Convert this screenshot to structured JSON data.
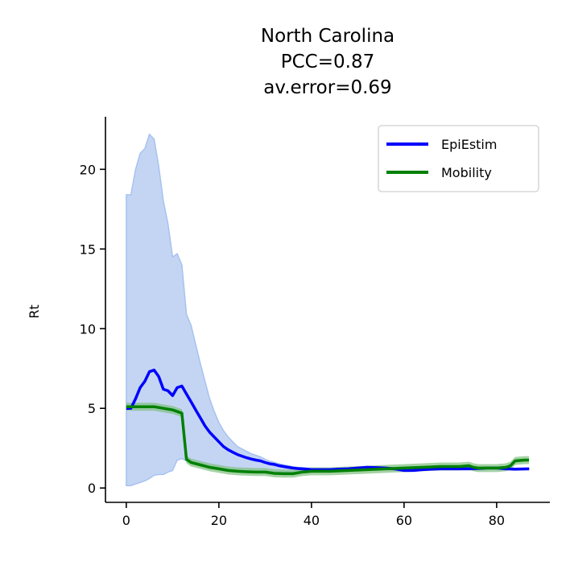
{
  "chart_data": {
    "type": "line",
    "title_lines": [
      "North Carolina",
      "PCC=0.87",
      "av.error=0.69"
    ],
    "xlabel": "",
    "ylabel": "Rt",
    "xlim": [
      -4.5,
      91.5
    ],
    "ylim": [
      -0.9,
      23.3
    ],
    "xticks": [
      0,
      20,
      40,
      60,
      80
    ],
    "yticks": [
      0,
      5,
      10,
      15,
      20
    ],
    "grid": false,
    "legend_position": "top-right",
    "colors": {
      "epiestim": "#0000ff",
      "mobility": "#008000",
      "epiestim_band_fill": "#c4d5f4",
      "epiestim_band_edge": "#a7c2f0",
      "mobility_band_fill": "#7fbf7f"
    },
    "series": [
      {
        "name": "EpiEstim",
        "color": "#0000ff",
        "x": [
          0,
          1,
          2,
          3,
          4,
          5,
          6,
          7,
          8,
          9,
          10,
          11,
          12,
          13,
          14,
          15,
          16,
          17,
          18,
          19,
          20,
          21,
          22,
          23,
          24,
          25,
          26,
          27,
          28,
          29,
          30,
          31,
          32,
          33,
          34,
          35,
          36,
          37,
          38,
          39,
          40,
          42,
          44,
          46,
          48,
          50,
          52,
          54,
          56,
          58,
          60,
          62,
          64,
          66,
          68,
          70,
          72,
          74,
          76,
          78,
          80,
          82,
          84,
          87
        ],
        "y": [
          5.0,
          5.0,
          5.6,
          6.3,
          6.7,
          7.3,
          7.4,
          7.0,
          6.2,
          6.1,
          5.8,
          6.3,
          6.4,
          5.9,
          5.4,
          4.9,
          4.4,
          3.9,
          3.5,
          3.2,
          2.9,
          2.6,
          2.4,
          2.25,
          2.1,
          2.0,
          1.9,
          1.82,
          1.75,
          1.7,
          1.6,
          1.52,
          1.48,
          1.4,
          1.35,
          1.3,
          1.25,
          1.22,
          1.2,
          1.18,
          1.15,
          1.15,
          1.15,
          1.18,
          1.2,
          1.25,
          1.3,
          1.28,
          1.25,
          1.2,
          1.1,
          1.1,
          1.15,
          1.18,
          1.2,
          1.2,
          1.2,
          1.2,
          1.22,
          1.25,
          1.25,
          1.2,
          1.18,
          1.2
        ],
        "lower": [
          0.15,
          0.15,
          0.25,
          0.35,
          0.45,
          0.6,
          0.8,
          0.85,
          0.85,
          1.0,
          1.1,
          1.75,
          1.85,
          1.7,
          1.6,
          1.5,
          1.4,
          1.35,
          1.3,
          1.25,
          1.2,
          1.15,
          1.1,
          1.05,
          1.0,
          1.0,
          1.0,
          1.0,
          1.0,
          1.0,
          1.0,
          1.0,
          1.0,
          1.0,
          1.0,
          1.0,
          1.0,
          1.0,
          1.0,
          1.0,
          1.0,
          1.0,
          1.05,
          1.1,
          1.15,
          1.2,
          1.25,
          1.2,
          1.15,
          1.1,
          1.05,
          1.05,
          1.1,
          1.15,
          1.15,
          1.15,
          1.15,
          1.15,
          1.18,
          1.2,
          1.2,
          1.15,
          1.12,
          1.15
        ],
        "upper": [
          18.4,
          18.4,
          20.0,
          21.0,
          21.3,
          22.2,
          21.9,
          20.2,
          18.0,
          16.6,
          14.5,
          14.7,
          14.0,
          10.9,
          10.2,
          9.0,
          7.8,
          6.7,
          5.6,
          4.8,
          4.1,
          3.6,
          3.2,
          2.9,
          2.6,
          2.45,
          2.3,
          2.15,
          2.05,
          1.95,
          1.8,
          1.68,
          1.6,
          1.52,
          1.45,
          1.4,
          1.33,
          1.3,
          1.28,
          1.25,
          1.2,
          1.2,
          1.2,
          1.25,
          1.27,
          1.3,
          1.35,
          1.33,
          1.3,
          1.25,
          1.15,
          1.15,
          1.2,
          1.22,
          1.25,
          1.25,
          1.25,
          1.25,
          1.27,
          1.3,
          1.3,
          1.25,
          1.22,
          1.25
        ]
      },
      {
        "name": "Mobility",
        "color": "#008000",
        "x": [
          0,
          2,
          4,
          6,
          8,
          9,
          10,
          11,
          12,
          13,
          14,
          16,
          18,
          20,
          22,
          24,
          26,
          28,
          30,
          32,
          34,
          36,
          38,
          40,
          44,
          48,
          52,
          56,
          60,
          64,
          68,
          72,
          74,
          75,
          76,
          78,
          80,
          82,
          83,
          84,
          86,
          87
        ],
        "y": [
          5.1,
          5.1,
          5.1,
          5.1,
          5.0,
          4.95,
          4.9,
          4.8,
          4.7,
          1.8,
          1.6,
          1.45,
          1.3,
          1.2,
          1.1,
          1.05,
          1.02,
          1.0,
          1.0,
          0.92,
          0.9,
          0.9,
          1.0,
          1.05,
          1.05,
          1.1,
          1.15,
          1.2,
          1.25,
          1.3,
          1.35,
          1.35,
          1.4,
          1.3,
          1.25,
          1.25,
          1.25,
          1.3,
          1.4,
          1.7,
          1.75,
          1.75
        ],
        "band": 0.25
      }
    ]
  }
}
